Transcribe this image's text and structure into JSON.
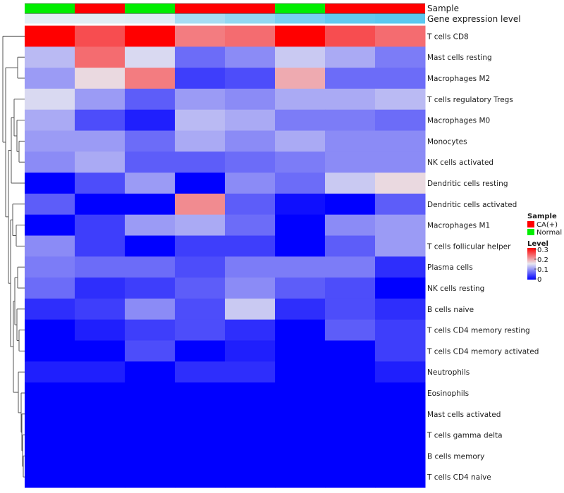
{
  "chart_data": {
    "type": "heatmap",
    "title": "",
    "annotation_tracks": [
      {
        "name": "Sample",
        "values": [
          "Normal",
          "CA(+)",
          "Normal",
          "CA(+)",
          "CA(+)",
          "Normal",
          "CA(+)",
          "CA(+)"
        ]
      },
      {
        "name": "Gene expression level",
        "values": [
          0.02,
          0.03,
          0.05,
          0.45,
          0.6,
          0.8,
          0.95,
          1.0
        ]
      }
    ],
    "rows": [
      "T cells CD8",
      "Mast cells resting",
      "Macrophages M2",
      "T cells regulatory  Tregs",
      "Macrophages M0",
      "Monocytes",
      "NK cells activated",
      "Dendritic cells resting",
      "Dendritic cells activated",
      "Macrophages M1",
      "T cells follicular helper",
      "Plasma cells",
      "NK cells resting",
      "B cells naive",
      "T cells CD4 memory resting",
      "T cells CD4 memory activated",
      "Neutrophils",
      "Eosinophils",
      "Mast cells activated",
      "T cells gamma delta",
      "B cells memory",
      "T cells CD4 naive"
    ],
    "values": [
      [
        0.3,
        0.25,
        0.3,
        0.22,
        0.23,
        0.3,
        0.25,
        0.23
      ],
      [
        0.12,
        0.23,
        0.14,
        0.07,
        0.09,
        0.13,
        0.11,
        0.08
      ],
      [
        0.1,
        0.16,
        0.22,
        0.04,
        0.05,
        0.19,
        0.07,
        0.07
      ],
      [
        0.14,
        0.1,
        0.06,
        0.1,
        0.09,
        0.11,
        0.11,
        0.12
      ],
      [
        0.11,
        0.05,
        0.02,
        0.12,
        0.11,
        0.08,
        0.08,
        0.07
      ],
      [
        0.1,
        0.1,
        0.07,
        0.11,
        0.09,
        0.11,
        0.09,
        0.09
      ],
      [
        0.09,
        0.11,
        0.06,
        0.06,
        0.07,
        0.08,
        0.09,
        0.09
      ],
      [
        0.0,
        0.05,
        0.1,
        0.0,
        0.09,
        0.07,
        0.13,
        0.16
      ],
      [
        0.06,
        0.0,
        0.0,
        0.21,
        0.06,
        0.01,
        0.0,
        0.06
      ],
      [
        0.0,
        0.04,
        0.1,
        0.11,
        0.07,
        0.0,
        0.09,
        0.1
      ],
      [
        0.09,
        0.04,
        0.0,
        0.04,
        0.04,
        0.0,
        0.06,
        0.1
      ],
      [
        0.08,
        0.07,
        0.07,
        0.05,
        0.08,
        0.08,
        0.08,
        0.03
      ],
      [
        0.07,
        0.03,
        0.04,
        0.06,
        0.09,
        0.06,
        0.05,
        0.0
      ],
      [
        0.03,
        0.04,
        0.09,
        0.05,
        0.13,
        0.03,
        0.05,
        0.03
      ],
      [
        0.0,
        0.02,
        0.04,
        0.05,
        0.03,
        0.0,
        0.06,
        0.04
      ],
      [
        0.0,
        0.0,
        0.05,
        0.0,
        0.02,
        0.0,
        0.0,
        0.04
      ],
      [
        0.02,
        0.02,
        0.0,
        0.03,
        0.03,
        0.0,
        0.0,
        0.02
      ],
      [
        0.0,
        0.0,
        0.0,
        0.0,
        0.0,
        0.0,
        0.0,
        0.0
      ],
      [
        0.0,
        0.0,
        0.0,
        0.0,
        0.0,
        0.0,
        0.0,
        0.0
      ],
      [
        0.0,
        0.0,
        0.0,
        0.0,
        0.0,
        0.0,
        0.0,
        0.0
      ],
      [
        0.0,
        0.0,
        0.0,
        0.0,
        0.0,
        0.0,
        0.0,
        0.0
      ],
      [
        0.0,
        0.0,
        0.0,
        0.0,
        0.0,
        0.0,
        0.0,
        0.0
      ]
    ],
    "color_scale": {
      "min": 0,
      "max": 0.3,
      "low": "#0000ff",
      "mid": "#e8e8f0",
      "high": "#ff0000"
    },
    "legend": {
      "position": "right",
      "sample_title": "Sample",
      "sample_entries": [
        {
          "label": "CA(+)",
          "color": "#ff0000"
        },
        {
          "label": "Normal",
          "color": "#00ee00"
        }
      ],
      "level_title": "Level",
      "level_ticks": [
        "0.3",
        "0.2",
        "0.1",
        "0"
      ]
    },
    "track_colors": {
      "Normal": "#00ee00",
      "CA(+)": "#ff0000",
      "expr_low": "#e6eff5",
      "expr_high": "#5bc8f0"
    }
  }
}
